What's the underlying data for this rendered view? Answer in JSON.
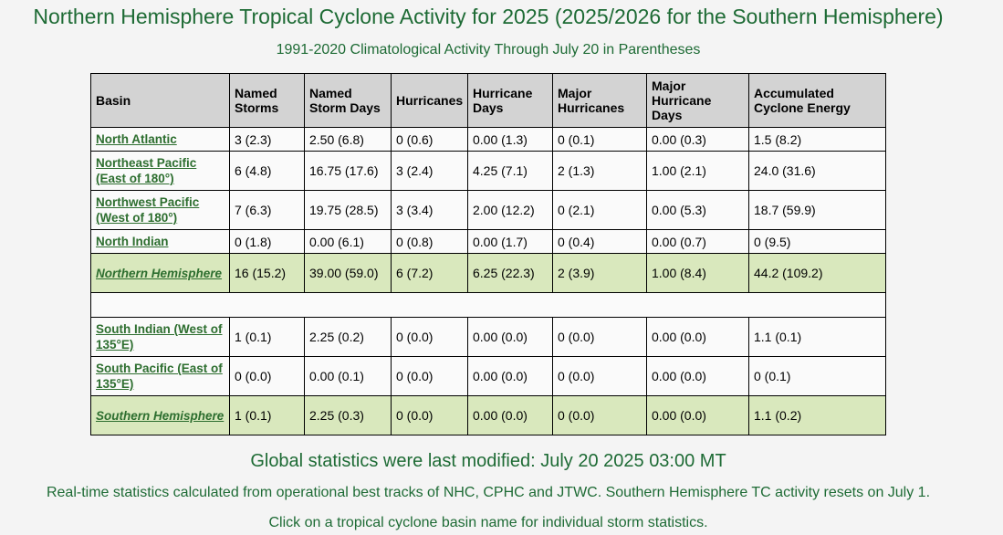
{
  "page": {
    "title": "Northern Hemisphere Tropical Cyclone Activity for 2025 (2025/2026 for the Southern Hemisphere)",
    "subtitle": "1991-2020 Climatological Activity Through July 20 in Parentheses"
  },
  "table": {
    "headers": {
      "basin": "Basin",
      "named_storms": "Named Storms",
      "named_storm_days": "Named Storm Days",
      "hurricanes": "Hurricanes",
      "hurricane_days": "Hurricane Days",
      "major_hurricanes": "Major Hurricanes",
      "major_hurricane_days": "Major Hurricane Days",
      "ace": "Accumulated Cyclone Energy"
    },
    "rows": {
      "north_atlantic": {
        "basin": "North Atlantic",
        "named_storms": "3 (2.3)",
        "named_storm_days": "2.50 (6.8)",
        "hurricanes": "0 (0.6)",
        "hurricane_days": "0.00 (1.3)",
        "major_hurricanes": "0 (0.1)",
        "major_hurricane_days": "0.00 (0.3)",
        "ace": "1.5 (8.2)"
      },
      "northeast_pacific": {
        "basin": "Northeast Pacific (East of 180°)",
        "named_storms": "6 (4.8)",
        "named_storm_days": "16.75 (17.6)",
        "hurricanes": "3 (2.4)",
        "hurricane_days": "4.25 (7.1)",
        "major_hurricanes": "2 (1.3)",
        "major_hurricane_days": "1.00 (2.1)",
        "ace": "24.0 (31.6)"
      },
      "northwest_pacific": {
        "basin": "Northwest Pacific (West of 180°)",
        "named_storms": "7 (6.3)",
        "named_storm_days": "19.75 (28.5)",
        "hurricanes": "3 (3.4)",
        "hurricane_days": "2.00 (12.2)",
        "major_hurricanes": "0 (2.1)",
        "major_hurricane_days": "0.00 (5.3)",
        "ace": "18.7 (59.9)"
      },
      "north_indian": {
        "basin": "North Indian",
        "named_storms": "0 (1.8)",
        "named_storm_days": "0.00 (6.1)",
        "hurricanes": "0 (0.8)",
        "hurricane_days": "0.00 (1.7)",
        "major_hurricanes": "0 (0.4)",
        "major_hurricane_days": "0.00 (0.7)",
        "ace": "0 (9.5)"
      },
      "northern_hemisphere": {
        "basin": "Northern Hemisphere",
        "named_storms": "16 (15.2)",
        "named_storm_days": "39.00 (59.0)",
        "hurricanes": "6 (7.2)",
        "hurricane_days": "6.25 (22.3)",
        "major_hurricanes": "2 (3.9)",
        "major_hurricane_days": "1.00 (8.4)",
        "ace": "44.2 (109.2)"
      },
      "south_indian": {
        "basin": "South Indian (West of 135°E)",
        "named_storms": "1 (0.1)",
        "named_storm_days": "2.25 (0.2)",
        "hurricanes": "0 (0.0)",
        "hurricane_days": "0.00 (0.0)",
        "major_hurricanes": "0 (0.0)",
        "major_hurricane_days": "0.00 (0.0)",
        "ace": "1.1 (0.1)"
      },
      "south_pacific": {
        "basin": "South Pacific (East of 135°E)",
        "named_storms": "0 (0.0)",
        "named_storm_days": "0.00 (0.1)",
        "hurricanes": "0 (0.0)",
        "hurricane_days": "0.00 (0.0)",
        "major_hurricanes": "0 (0.0)",
        "major_hurricane_days": "0.00 (0.0)",
        "ace": "0 (0.1)"
      },
      "southern_hemisphere": {
        "basin": "Southern Hemisphere",
        "named_storms": "1 (0.1)",
        "named_storm_days": "2.25 (0.3)",
        "hurricanes": "0 (0.0)",
        "hurricane_days": "0.00 (0.0)",
        "major_hurricanes": "0 (0.0)",
        "major_hurricane_days": "0.00 (0.0)",
        "ace": "1.1 (0.2)"
      }
    }
  },
  "footer": {
    "last_modified": "Global statistics were last modified: July 20 2025 03:00 MT",
    "realtime_note": "Real-time statistics calculated from operational best tracks of NHC, CPHC and JTWC. Southern Hemisphere TC activity resets on July 1.",
    "click_note": "Click on a tropical cyclone basin name for individual storm statistics."
  },
  "colors": {
    "title_green": "#1e6b35",
    "link_green": "#2d6e2f",
    "header_gray": "#d3d3d3",
    "total_row_green": "#d9e8bd"
  }
}
